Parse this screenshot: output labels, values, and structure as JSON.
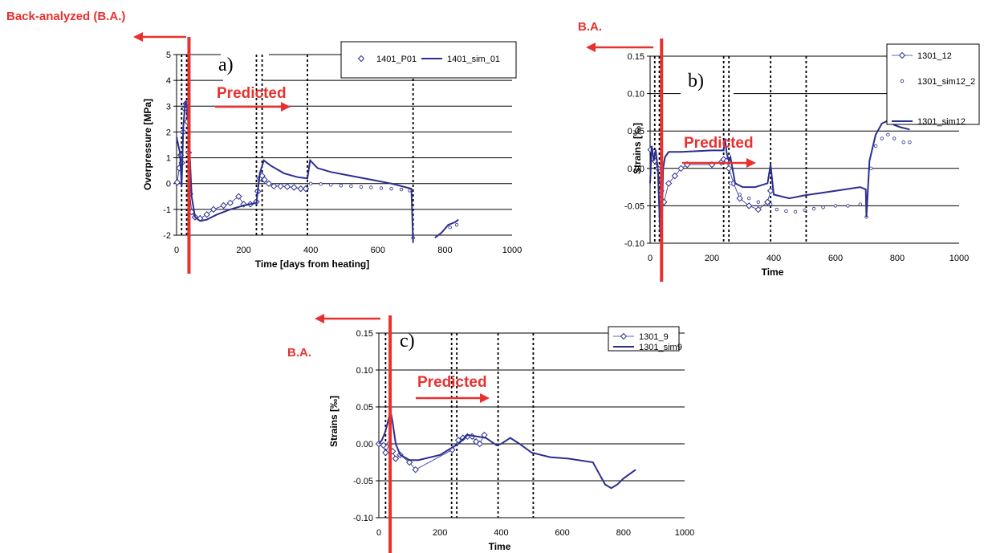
{
  "colors": {
    "series": "#2b2f8f",
    "annotation": "#e8312f",
    "grid": "#000000"
  },
  "chart_data": [
    {
      "type": "line",
      "panel_label": "a)",
      "xlabel": "Time [days from heating]",
      "ylabel": "Overpressure [MPa]",
      "xlim": [
        0,
        1000
      ],
      "ylim": [
        -2,
        5
      ],
      "xticks": [
        "0",
        "200",
        "400",
        "600",
        "800",
        "1000"
      ],
      "yticks": [
        "-2",
        "-1",
        "0",
        "1",
        "2",
        "3",
        "4",
        "5"
      ],
      "grid": "horizontal",
      "legend_position": "top-right",
      "back_label": "Back-analyzed (B.A.)",
      "predicted_label": "Predicted",
      "cut_time": 37,
      "vlines": [
        15,
        30,
        238,
        255,
        390,
        705
      ],
      "series": [
        {
          "name": "1401_P01",
          "style": "diamond",
          "points": [
            [
              2,
              0.05
            ],
            [
              8,
              0.6
            ],
            [
              12,
              1.1
            ],
            [
              16,
              0.8
            ],
            [
              20,
              2.0
            ],
            [
              24,
              2.9
            ],
            [
              28,
              3.1
            ],
            [
              32,
              2.4
            ],
            [
              36,
              1.2
            ],
            [
              40,
              -0.4
            ],
            [
              45,
              -1.1
            ],
            [
              55,
              -1.3
            ],
            [
              70,
              -1.35
            ],
            [
              90,
              -1.2
            ],
            [
              110,
              -1.0
            ],
            [
              140,
              -0.85
            ],
            [
              160,
              -0.75
            ],
            [
              185,
              -0.5
            ],
            [
              200,
              -0.8
            ],
            [
              220,
              -0.8
            ],
            [
              238,
              -0.7
            ],
            [
              242,
              -0.3
            ],
            [
              248,
              0.2
            ],
            [
              255,
              0.3
            ],
            [
              262,
              0.15
            ],
            [
              275,
              0.0
            ],
            [
              290,
              -0.1
            ],
            [
              310,
              -0.1
            ],
            [
              330,
              -0.12
            ],
            [
              350,
              -0.15
            ],
            [
              370,
              -0.2
            ],
            [
              385,
              -0.2
            ]
          ]
        },
        {
          "name": "",
          "style": "dot",
          "points": [
            [
              400,
              0.0
            ],
            [
              430,
              -0.02
            ],
            [
              460,
              -0.05
            ],
            [
              490,
              -0.08
            ],
            [
              520,
              -0.1
            ],
            [
              550,
              -0.13
            ],
            [
              580,
              -0.15
            ],
            [
              610,
              -0.18
            ],
            [
              640,
              -0.2
            ],
            [
              670,
              -0.23
            ],
            [
              695,
              -0.27
            ],
            [
              705,
              -2.1
            ],
            [
              815,
              -1.7
            ],
            [
              835,
              -1.6
            ]
          ]
        },
        {
          "name": "1401_sim_01",
          "style": "line",
          "points": [
            [
              0,
              1.8
            ],
            [
              10,
              1.2
            ],
            [
              15,
              -0.1
            ],
            [
              20,
              2.2
            ],
            [
              26,
              3.2
            ],
            [
              32,
              3.0
            ],
            [
              38,
              1.5
            ],
            [
              45,
              -0.5
            ],
            [
              55,
              -1.3
            ],
            [
              70,
              -1.45
            ],
            [
              90,
              -1.4
            ],
            [
              120,
              -1.2
            ],
            [
              160,
              -1.0
            ],
            [
              200,
              -0.85
            ],
            [
              238,
              -0.75
            ],
            [
              248,
              0.4
            ],
            [
              260,
              0.9
            ],
            [
              280,
              0.7
            ],
            [
              320,
              0.4
            ],
            [
              360,
              0.25
            ],
            [
              390,
              0.2
            ],
            [
              398,
              0.9
            ],
            [
              420,
              0.6
            ],
            [
              460,
              0.45
            ],
            [
              520,
              0.3
            ],
            [
              580,
              0.15
            ],
            [
              640,
              0.0
            ],
            [
              700,
              -0.2
            ],
            [
              705,
              -2.3
            ]
          ]
        },
        {
          "name": "",
          "style": "line",
          "points": [
            [
              770,
              -2.1
            ],
            [
              790,
              -1.9
            ],
            [
              810,
              -1.6
            ],
            [
              830,
              -1.5
            ],
            [
              840,
              -1.4
            ]
          ]
        }
      ]
    },
    {
      "type": "line",
      "panel_label": "b)",
      "xlabel": "Time",
      "ylabel": "Strains [‰]",
      "xlim": [
        0,
        1000
      ],
      "ylim": [
        -0.1,
        0.15
      ],
      "xticks": [
        "0",
        "200",
        "400",
        "600",
        "800",
        "1000"
      ],
      "yticks": [
        "-0.10",
        "-0.05",
        "0.00",
        "0.05",
        "0.10",
        "0.15"
      ],
      "grid": "horizontal",
      "legend_position": "top-right",
      "back_label": "B.A.",
      "predicted_label": "Predicted",
      "cut_time": 37,
      "vlines": [
        15,
        30,
        238,
        255,
        390,
        505
      ],
      "series": [
        {
          "name": "1301_12",
          "style": "diamond",
          "points": [
            [
              2,
              0.025
            ],
            [
              15,
              0.01
            ],
            [
              25,
              0.0
            ],
            [
              35,
              -0.03
            ],
            [
              45,
              -0.045
            ],
            [
              60,
              -0.02
            ],
            [
              80,
              -0.01
            ],
            [
              100,
              0.0
            ],
            [
              120,
              0.005
            ],
            [
              200,
              0.005
            ],
            [
              230,
              0.008
            ],
            [
              238,
              0.012
            ],
            [
              248,
              0.01
            ],
            [
              255,
              0.0
            ],
            [
              270,
              -0.02
            ],
            [
              290,
              -0.04
            ],
            [
              320,
              -0.05
            ],
            [
              350,
              -0.055
            ],
            [
              380,
              -0.045
            ],
            [
              390,
              -0.03
            ]
          ]
        },
        {
          "name": "1301_sim12_2",
          "style": "dot",
          "points": [
            [
              260,
              -0.02
            ],
            [
              290,
              -0.035
            ],
            [
              320,
              -0.04
            ],
            [
              350,
              -0.045
            ],
            [
              390,
              -0.048
            ],
            [
              410,
              -0.055
            ],
            [
              440,
              -0.057
            ],
            [
              470,
              -0.058
            ],
            [
              500,
              -0.056
            ],
            [
              530,
              -0.054
            ],
            [
              560,
              -0.052
            ],
            [
              600,
              -0.05
            ],
            [
              640,
              -0.05
            ],
            [
              680,
              -0.048
            ],
            [
              700,
              -0.065
            ],
            [
              715,
              0.0
            ],
            [
              730,
              0.03
            ],
            [
              750,
              0.04
            ],
            [
              770,
              0.045
            ],
            [
              790,
              0.04
            ],
            [
              820,
              0.035
            ],
            [
              840,
              0.035
            ]
          ]
        },
        {
          "name": "1301_sim12",
          "style": "line",
          "points": [
            [
              0,
              -0.02
            ],
            [
              5,
              0.03
            ],
            [
              12,
              0.01
            ],
            [
              18,
              0.025
            ],
            [
              25,
              0.0
            ],
            [
              32,
              -0.08
            ],
            [
              37,
              -0.1
            ],
            [
              42,
              0.0
            ],
            [
              48,
              0.015
            ],
            [
              60,
              0.022
            ],
            [
              100,
              0.022
            ],
            [
              200,
              0.024
            ],
            [
              238,
              0.024
            ],
            [
              242,
              0.04
            ],
            [
              248,
              0.02
            ],
            [
              255,
              0.01
            ],
            [
              260,
              0.015
            ],
            [
              275,
              -0.02
            ],
            [
              300,
              -0.025
            ],
            [
              340,
              -0.025
            ],
            [
              380,
              -0.02
            ],
            [
              390,
              0.005
            ],
            [
              400,
              -0.035
            ],
            [
              450,
              -0.04
            ],
            [
              500,
              -0.036
            ],
            [
              600,
              -0.03
            ],
            [
              680,
              -0.025
            ],
            [
              698,
              -0.028
            ],
            [
              700,
              -0.065
            ],
            [
              710,
              0.01
            ],
            [
              730,
              0.045
            ],
            [
              750,
              0.06
            ],
            [
              770,
              0.064
            ],
            [
              790,
              0.058
            ],
            [
              810,
              0.055
            ],
            [
              840,
              0.052
            ]
          ]
        }
      ]
    },
    {
      "type": "line",
      "panel_label": "c)",
      "xlabel": "Time",
      "ylabel": "Strains [‰]",
      "xlim": [
        0,
        1000
      ],
      "ylim": [
        -0.1,
        0.15
      ],
      "xticks": [
        "0",
        "200",
        "400",
        "600",
        "800",
        "1000"
      ],
      "yticks": [
        "-0.10",
        "-0.05",
        "0.00",
        "0.05",
        "0.10",
        "0.15"
      ],
      "grid": "horizontal",
      "legend_position": "top-right",
      "back_label": "B.A.",
      "predicted_label": "Predicted",
      "cut_time": 37,
      "vlines": [
        22,
        38,
        238,
        255,
        390,
        505
      ],
      "series": [
        {
          "name": "1301_9",
          "style": "diamond",
          "points": [
            [
              0,
              0.0
            ],
            [
              15,
              -0.002
            ],
            [
              22,
              -0.012
            ],
            [
              35,
              0.0
            ],
            [
              45,
              -0.01
            ],
            [
              55,
              -0.02
            ],
            [
              70,
              -0.015
            ],
            [
              100,
              -0.025
            ],
            [
              120,
              -0.035
            ],
            [
              240,
              -0.008
            ],
            [
              260,
              0.005
            ],
            [
              275,
              0.008
            ],
            [
              290,
              0.01
            ],
            [
              305,
              0.01
            ],
            [
              318,
              0.003
            ],
            [
              330,
              0.0
            ],
            [
              345,
              0.012
            ]
          ]
        },
        {
          "name": "1301_sim9",
          "style": "line",
          "points": [
            [
              0,
              0.0
            ],
            [
              10,
              0.005
            ],
            [
              20,
              0.015
            ],
            [
              30,
              0.03
            ],
            [
              38,
              0.045
            ],
            [
              45,
              0.03
            ],
            [
              55,
              0.0
            ],
            [
              70,
              -0.015
            ],
            [
              100,
              -0.022
            ],
            [
              130,
              -0.022
            ],
            [
              200,
              -0.015
            ],
            [
              240,
              -0.005
            ],
            [
              260,
              0.0
            ],
            [
              290,
              0.012
            ],
            [
              320,
              0.01
            ],
            [
              350,
              0.008
            ],
            [
              385,
              -0.002
            ],
            [
              400,
              0.0
            ],
            [
              430,
              0.008
            ],
            [
              460,
              0.0
            ],
            [
              500,
              -0.012
            ],
            [
              560,
              -0.018
            ],
            [
              620,
              -0.02
            ],
            [
              700,
              -0.025
            ],
            [
              720,
              -0.04
            ],
            [
              740,
              -0.055
            ],
            [
              760,
              -0.06
            ],
            [
              780,
              -0.055
            ],
            [
              800,
              -0.047
            ],
            [
              840,
              -0.035
            ]
          ]
        }
      ]
    }
  ]
}
